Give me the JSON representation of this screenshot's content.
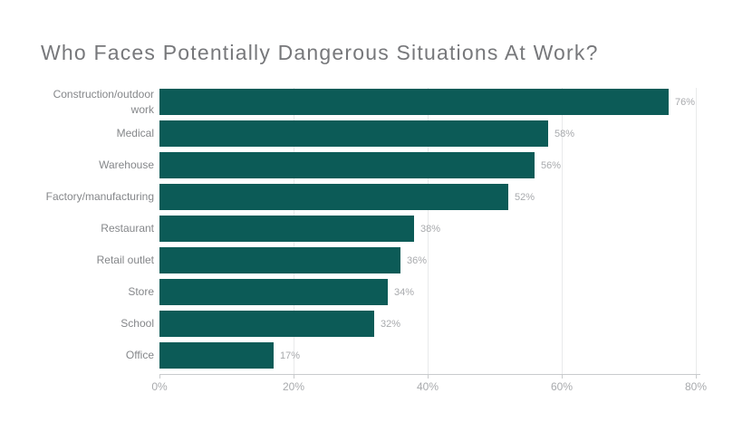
{
  "title": "Who Faces Potentially Dangerous Situations At Work?",
  "chart_data": {
    "type": "bar",
    "orientation": "horizontal",
    "title": "Who Faces Potentially Dangerous Situations At Work?",
    "categories": [
      "Construction/outdoor work",
      "Medical",
      "Warehouse",
      "Factory/manufacturing",
      "Restaurant",
      "Retail outlet",
      "Store",
      "School",
      "Office"
    ],
    "values": [
      76,
      58,
      56,
      52,
      38,
      36,
      34,
      32,
      17
    ],
    "value_labels": [
      "76%",
      "58%",
      "56%",
      "52%",
      "38%",
      "36%",
      "34%",
      "32%",
      "17%"
    ],
    "xlabel": "",
    "ylabel": "",
    "xlim": [
      0,
      80
    ],
    "x_ticks": [
      0,
      20,
      40,
      60,
      80
    ],
    "x_tick_labels": [
      "0%",
      "20%",
      "40%",
      "60%",
      "80%"
    ],
    "grid": "vertical-gridlines-on",
    "legend": "none"
  },
  "colors": {
    "background": "#ffffff",
    "bar": "#0c5b57",
    "title_text": "#77787b",
    "category_label": "#85878a",
    "value_label": "#a8aaad",
    "tick_label": "#a8aaad",
    "axis_line": "#c9cbcd",
    "gridline": "#e9eaeb"
  }
}
